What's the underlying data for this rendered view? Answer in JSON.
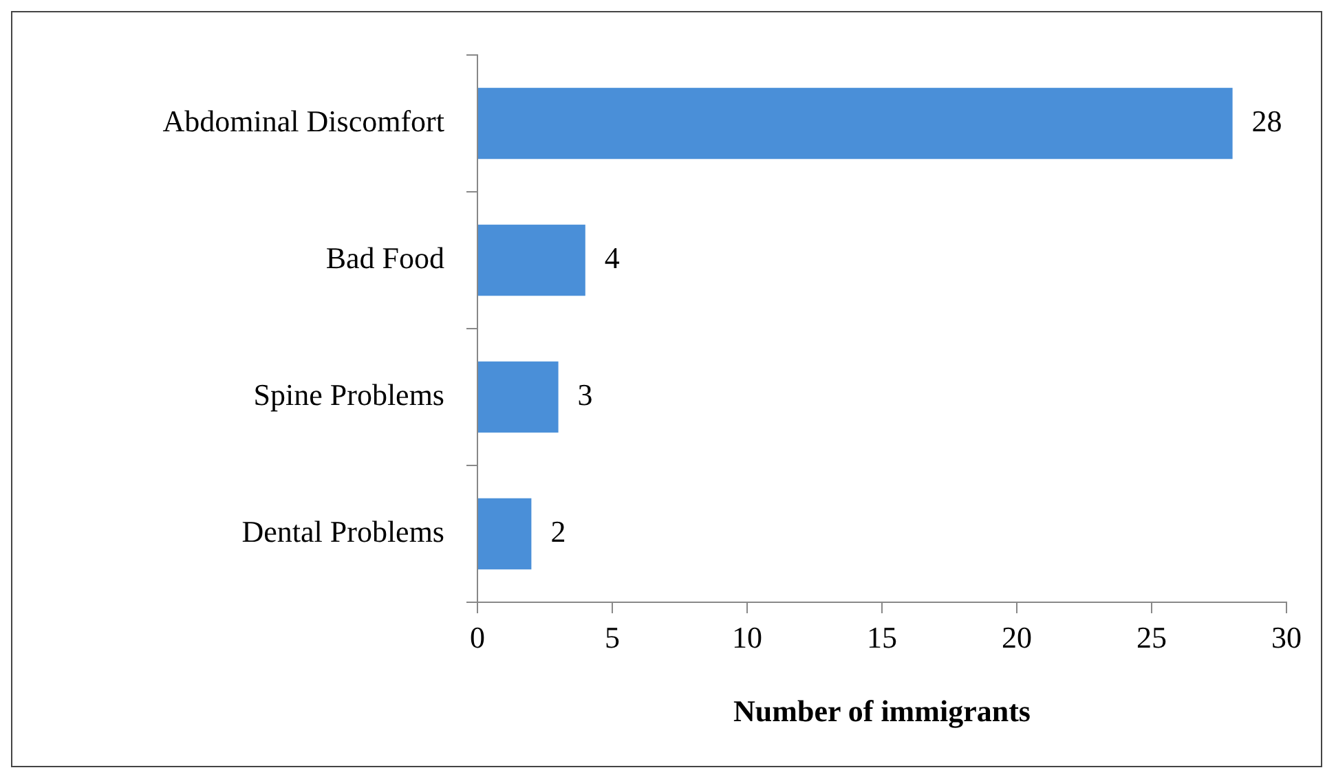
{
  "chart_data": {
    "type": "bar",
    "orientation": "horizontal",
    "xlabel": "Number of immigrants",
    "categories": [
      "Abdominal Discomfort",
      "Bad Food",
      "Spine Problems",
      "Dental Problems"
    ],
    "values": [
      28,
      4,
      3,
      2
    ],
    "color": "#4a8fd8",
    "xlim": [
      0,
      30
    ],
    "xticks": [
      0,
      5,
      10,
      15,
      20,
      25,
      30
    ],
    "grid": false,
    "legend": false,
    "data_labels": true
  }
}
